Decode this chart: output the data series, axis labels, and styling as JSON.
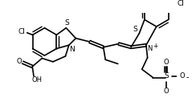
{
  "bg_color": "#ffffff",
  "line_color": "#000000",
  "lw": 1.2,
  "figsize": [
    2.44,
    1.22
  ],
  "dpi": 100,
  "xlim": [
    0,
    244
  ],
  "ylim": [
    0,
    122
  ]
}
